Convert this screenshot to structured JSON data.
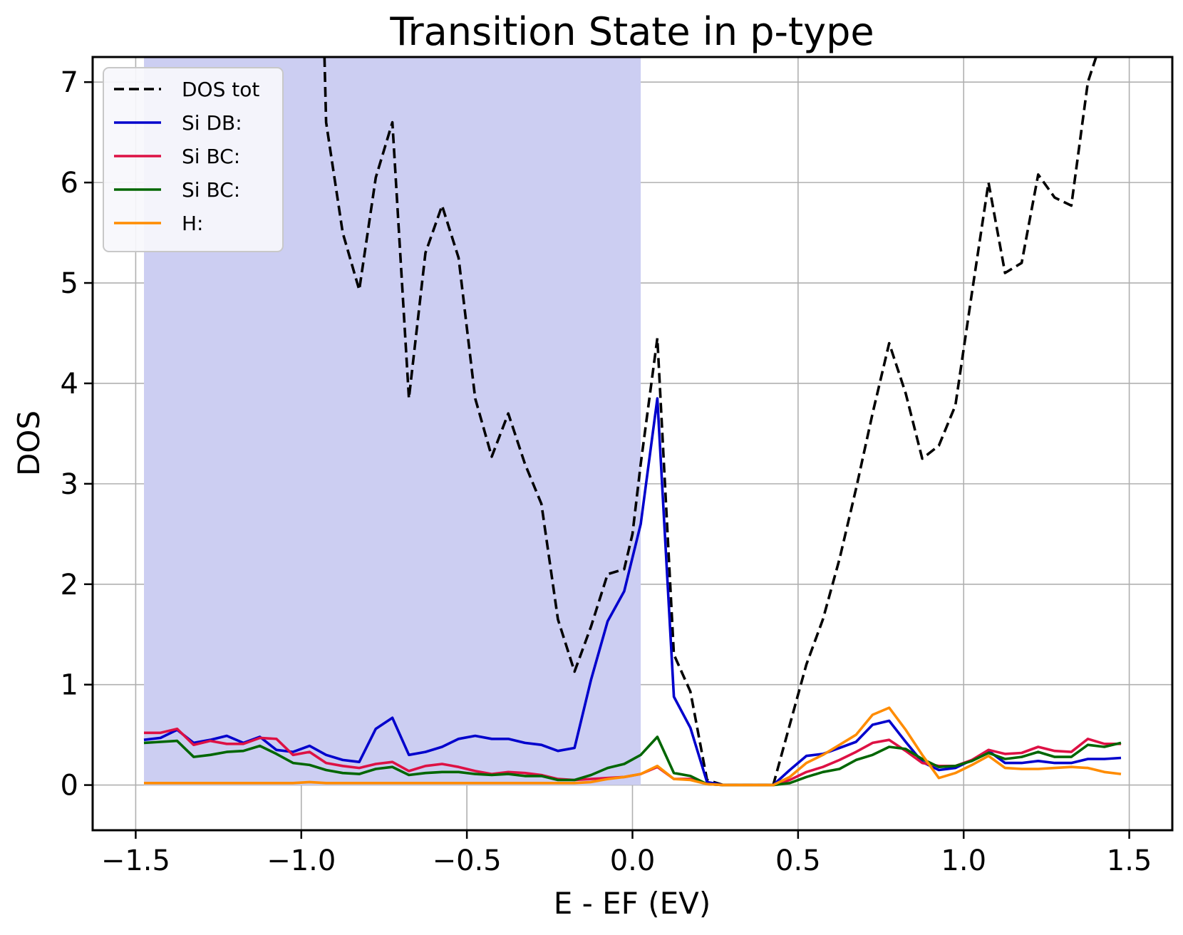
{
  "chart_data": {
    "type": "line",
    "title": "Transition State in p-type",
    "xlabel": "E - EF (EV)",
    "ylabel": "DOS",
    "xlim": [
      -1.63,
      1.63
    ],
    "ylim": [
      -0.45,
      7.25
    ],
    "grid": true,
    "legend_position": "top-left",
    "x_ticks": [
      -1.5,
      -1.0,
      -0.5,
      0.0,
      0.5,
      1.0,
      1.5
    ],
    "x_tick_labels": [
      "−1.5",
      "−1.0",
      "−0.5",
      "0.0",
      "0.5",
      "1.0",
      "1.5"
    ],
    "y_ticks": [
      0,
      1,
      2,
      3,
      4,
      5,
      6,
      7
    ],
    "y_tick_labels": [
      "0",
      "1",
      "2",
      "3",
      "4",
      "5",
      "6",
      "7"
    ],
    "occupied_fill": {
      "x_range": [
        -1.475,
        0.025
      ],
      "color": "#cccef2"
    },
    "series": [
      {
        "name": "DOS tot",
        "color": "#000000",
        "style": "dashed",
        "x": [
          -0.93,
          -0.925,
          -0.875,
          -0.825,
          -0.775,
          -0.725,
          -0.675,
          -0.625,
          -0.575,
          -0.525,
          -0.475,
          -0.425,
          -0.375,
          -0.325,
          -0.275,
          -0.225,
          -0.175,
          -0.125,
          -0.075,
          -0.025,
          0.0,
          0.025,
          0.075,
          0.125,
          0.175,
          0.225,
          0.275,
          0.325,
          0.375,
          0.425,
          0.475,
          0.525,
          0.575,
          0.625,
          0.675,
          0.725,
          0.775,
          0.825,
          0.875,
          0.925,
          0.975,
          1.025,
          1.075,
          1.125,
          1.175,
          1.225,
          1.275,
          1.325,
          1.375,
          1.4
        ],
        "values": [
          7.25,
          6.6,
          5.5,
          4.93,
          6.05,
          6.6,
          3.85,
          5.3,
          5.77,
          5.25,
          3.85,
          3.27,
          3.7,
          3.2,
          2.8,
          1.65,
          1.13,
          1.58,
          2.1,
          2.15,
          2.5,
          3.2,
          4.45,
          1.3,
          0.93,
          0.05,
          0.0,
          0.0,
          0.0,
          0.0,
          0.6,
          1.2,
          1.65,
          2.25,
          2.95,
          3.7,
          4.4,
          3.9,
          3.25,
          3.38,
          3.78,
          4.9,
          6.0,
          5.1,
          5.2,
          6.08,
          5.85,
          5.77,
          7.0,
          7.25
        ]
      },
      {
        "name": "Si DB:",
        "color": "#0000cc",
        "style": "solid",
        "x": [
          -1.475,
          -1.425,
          -1.375,
          -1.325,
          -1.275,
          -1.225,
          -1.175,
          -1.125,
          -1.075,
          -1.025,
          -0.975,
          -0.925,
          -0.875,
          -0.825,
          -0.775,
          -0.725,
          -0.675,
          -0.625,
          -0.575,
          -0.525,
          -0.475,
          -0.425,
          -0.375,
          -0.325,
          -0.275,
          -0.225,
          -0.175,
          -0.125,
          -0.075,
          -0.025,
          0.025,
          0.075,
          0.125,
          0.175,
          0.225,
          0.275,
          0.325,
          0.375,
          0.425,
          0.475,
          0.525,
          0.575,
          0.625,
          0.675,
          0.725,
          0.775,
          0.825,
          0.875,
          0.925,
          0.975,
          1.025,
          1.075,
          1.125,
          1.175,
          1.225,
          1.275,
          1.325,
          1.375,
          1.425,
          1.475
        ],
        "values": [
          0.45,
          0.47,
          0.55,
          0.42,
          0.45,
          0.49,
          0.42,
          0.48,
          0.35,
          0.33,
          0.39,
          0.3,
          0.25,
          0.23,
          0.56,
          0.67,
          0.3,
          0.33,
          0.38,
          0.46,
          0.49,
          0.46,
          0.46,
          0.42,
          0.4,
          0.34,
          0.37,
          1.05,
          1.63,
          1.93,
          2.6,
          3.85,
          0.88,
          0.57,
          0.03,
          0.0,
          0.0,
          0.0,
          0.0,
          0.15,
          0.29,
          0.31,
          0.37,
          0.43,
          0.6,
          0.64,
          0.43,
          0.23,
          0.15,
          0.17,
          0.25,
          0.34,
          0.22,
          0.22,
          0.24,
          0.22,
          0.22,
          0.26,
          0.26,
          0.27
        ]
      },
      {
        "name": "Si BC:",
        "color": "#dd1144",
        "style": "solid",
        "x": [
          -1.475,
          -1.425,
          -1.375,
          -1.325,
          -1.275,
          -1.225,
          -1.175,
          -1.125,
          -1.075,
          -1.025,
          -0.975,
          -0.925,
          -0.875,
          -0.825,
          -0.775,
          -0.725,
          -0.675,
          -0.625,
          -0.575,
          -0.525,
          -0.475,
          -0.425,
          -0.375,
          -0.325,
          -0.275,
          -0.225,
          -0.175,
          -0.125,
          -0.075,
          -0.025,
          0.025,
          0.075,
          0.125,
          0.175,
          0.225,
          0.275,
          0.325,
          0.375,
          0.425,
          0.475,
          0.525,
          0.575,
          0.625,
          0.675,
          0.725,
          0.775,
          0.825,
          0.875,
          0.925,
          0.975,
          1.025,
          1.075,
          1.125,
          1.175,
          1.225,
          1.275,
          1.325,
          1.375,
          1.425,
          1.475
        ],
        "values": [
          0.52,
          0.52,
          0.56,
          0.4,
          0.44,
          0.41,
          0.41,
          0.47,
          0.46,
          0.3,
          0.33,
          0.22,
          0.19,
          0.17,
          0.21,
          0.23,
          0.14,
          0.19,
          0.21,
          0.18,
          0.14,
          0.11,
          0.13,
          0.12,
          0.1,
          0.06,
          0.05,
          0.06,
          0.07,
          0.08,
          0.11,
          0.18,
          0.06,
          0.06,
          0.01,
          0.0,
          0.0,
          0.0,
          0.0,
          0.05,
          0.13,
          0.18,
          0.25,
          0.33,
          0.42,
          0.45,
          0.34,
          0.22,
          0.19,
          0.19,
          0.25,
          0.35,
          0.31,
          0.32,
          0.38,
          0.34,
          0.33,
          0.46,
          0.41,
          0.41
        ]
      },
      {
        "name": "Si BC:",
        "color": "#006600",
        "style": "solid",
        "x": [
          -1.475,
          -1.425,
          -1.375,
          -1.325,
          -1.275,
          -1.225,
          -1.175,
          -1.125,
          -1.075,
          -1.025,
          -0.975,
          -0.925,
          -0.875,
          -0.825,
          -0.775,
          -0.725,
          -0.675,
          -0.625,
          -0.575,
          -0.525,
          -0.475,
          -0.425,
          -0.375,
          -0.325,
          -0.275,
          -0.225,
          -0.175,
          -0.125,
          -0.075,
          -0.025,
          0.025,
          0.075,
          0.125,
          0.175,
          0.225,
          0.275,
          0.325,
          0.375,
          0.425,
          0.475,
          0.525,
          0.575,
          0.625,
          0.675,
          0.725,
          0.775,
          0.825,
          0.875,
          0.925,
          0.975,
          1.025,
          1.075,
          1.125,
          1.175,
          1.225,
          1.275,
          1.325,
          1.375,
          1.425,
          1.475
        ],
        "values": [
          0.42,
          0.43,
          0.44,
          0.28,
          0.3,
          0.33,
          0.34,
          0.39,
          0.31,
          0.22,
          0.2,
          0.15,
          0.12,
          0.11,
          0.16,
          0.18,
          0.1,
          0.12,
          0.13,
          0.13,
          0.11,
          0.1,
          0.11,
          0.09,
          0.09,
          0.05,
          0.05,
          0.1,
          0.17,
          0.21,
          0.3,
          0.48,
          0.12,
          0.09,
          0.01,
          0.0,
          0.0,
          0.0,
          0.0,
          0.02,
          0.08,
          0.13,
          0.16,
          0.25,
          0.3,
          0.38,
          0.36,
          0.26,
          0.18,
          0.19,
          0.24,
          0.32,
          0.26,
          0.28,
          0.33,
          0.28,
          0.28,
          0.4,
          0.38,
          0.42
        ]
      },
      {
        "name": "H:",
        "color": "#ff8c00",
        "style": "solid",
        "x": [
          -1.475,
          -1.425,
          -1.375,
          -1.325,
          -1.275,
          -1.225,
          -1.175,
          -1.125,
          -1.075,
          -1.025,
          -0.975,
          -0.925,
          -0.875,
          -0.825,
          -0.775,
          -0.725,
          -0.675,
          -0.625,
          -0.575,
          -0.525,
          -0.475,
          -0.425,
          -0.375,
          -0.325,
          -0.275,
          -0.225,
          -0.175,
          -0.125,
          -0.075,
          -0.025,
          0.025,
          0.075,
          0.125,
          0.175,
          0.225,
          0.275,
          0.325,
          0.375,
          0.425,
          0.475,
          0.525,
          0.575,
          0.625,
          0.675,
          0.725,
          0.775,
          0.825,
          0.875,
          0.925,
          0.975,
          1.025,
          1.075,
          1.125,
          1.175,
          1.225,
          1.275,
          1.325,
          1.375,
          1.425,
          1.475
        ],
        "values": [
          0.02,
          0.02,
          0.02,
          0.02,
          0.02,
          0.02,
          0.02,
          0.02,
          0.02,
          0.02,
          0.03,
          0.02,
          0.02,
          0.02,
          0.02,
          0.02,
          0.02,
          0.02,
          0.02,
          0.02,
          0.02,
          0.02,
          0.02,
          0.02,
          0.02,
          0.02,
          0.02,
          0.03,
          0.06,
          0.08,
          0.11,
          0.19,
          0.06,
          0.05,
          0.01,
          0.0,
          0.0,
          0.0,
          0.0,
          0.08,
          0.22,
          0.3,
          0.4,
          0.5,
          0.7,
          0.77,
          0.55,
          0.3,
          0.07,
          0.12,
          0.2,
          0.29,
          0.17,
          0.16,
          0.16,
          0.17,
          0.18,
          0.17,
          0.13,
          0.11
        ]
      }
    ]
  }
}
